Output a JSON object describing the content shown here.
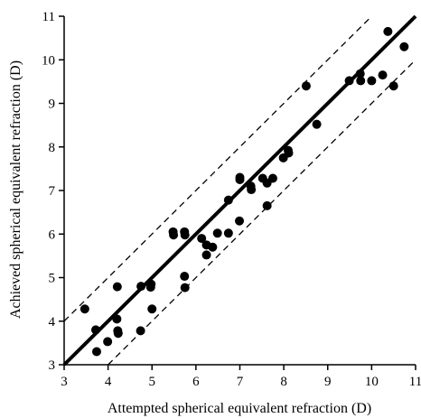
{
  "chart_data": {
    "type": "scatter",
    "title": "",
    "xlabel": "Attempted spherical equivalent refraction (D)",
    "ylabel": "Achieved spherical equivalent refraction (D)",
    "xlim": [
      3,
      11
    ],
    "ylim": [
      3,
      11
    ],
    "xticks": [
      3,
      4,
      5,
      6,
      7,
      8,
      9,
      10,
      11
    ],
    "yticks": [
      3,
      4,
      5,
      6,
      7,
      8,
      9,
      10,
      11
    ],
    "grid": false,
    "legend": "none",
    "marker_color": "#000000",
    "points": [
      {
        "x": 3.47,
        "y": 4.28
      },
      {
        "x": 3.72,
        "y": 3.8
      },
      {
        "x": 3.74,
        "y": 3.3
      },
      {
        "x": 3.99,
        "y": 3.53
      },
      {
        "x": 4.2,
        "y": 4.05
      },
      {
        "x": 4.21,
        "y": 4.79
      },
      {
        "x": 4.22,
        "y": 3.78
      },
      {
        "x": 4.23,
        "y": 3.72
      },
      {
        "x": 4.74,
        "y": 3.78
      },
      {
        "x": 4.75,
        "y": 4.8
      },
      {
        "x": 4.97,
        "y": 4.78
      },
      {
        "x": 4.98,
        "y": 4.85
      },
      {
        "x": 5.0,
        "y": 4.28
      },
      {
        "x": 5.48,
        "y": 6.05
      },
      {
        "x": 5.49,
        "y": 5.98
      },
      {
        "x": 5.74,
        "y": 6.05
      },
      {
        "x": 5.75,
        "y": 5.98
      },
      {
        "x": 5.74,
        "y": 5.03
      },
      {
        "x": 5.75,
        "y": 4.77
      },
      {
        "x": 6.13,
        "y": 5.9
      },
      {
        "x": 6.24,
        "y": 5.75
      },
      {
        "x": 6.24,
        "y": 5.52
      },
      {
        "x": 6.38,
        "y": 5.7
      },
      {
        "x": 6.49,
        "y": 6.02
      },
      {
        "x": 6.74,
        "y": 6.78
      },
      {
        "x": 6.74,
        "y": 6.02
      },
      {
        "x": 7.0,
        "y": 7.3
      },
      {
        "x": 7.0,
        "y": 7.25
      },
      {
        "x": 6.99,
        "y": 6.3
      },
      {
        "x": 7.25,
        "y": 7.1
      },
      {
        "x": 7.26,
        "y": 7.02
      },
      {
        "x": 7.52,
        "y": 7.28
      },
      {
        "x": 7.62,
        "y": 7.17
      },
      {
        "x": 7.62,
        "y": 6.65
      },
      {
        "x": 7.75,
        "y": 7.28
      },
      {
        "x": 7.99,
        "y": 7.75
      },
      {
        "x": 8.1,
        "y": 7.92
      },
      {
        "x": 8.11,
        "y": 7.86
      },
      {
        "x": 8.51,
        "y": 9.4
      },
      {
        "x": 8.75,
        "y": 8.52
      },
      {
        "x": 9.49,
        "y": 9.52
      },
      {
        "x": 9.74,
        "y": 9.68
      },
      {
        "x": 9.75,
        "y": 9.52
      },
      {
        "x": 10.0,
        "y": 9.52
      },
      {
        "x": 10.25,
        "y": 9.65
      },
      {
        "x": 10.37,
        "y": 10.65
      },
      {
        "x": 10.5,
        "y": 9.4
      },
      {
        "x": 10.74,
        "y": 10.3
      }
    ],
    "lines": [
      {
        "style": "solid",
        "from": [
          3,
          3
        ],
        "to": [
          11,
          11
        ]
      },
      {
        "style": "dashed",
        "from": [
          3,
          4
        ],
        "to": [
          10,
          11
        ]
      },
      {
        "style": "dashed",
        "from": [
          4,
          3
        ],
        "to": [
          11,
          10
        ]
      }
    ]
  }
}
